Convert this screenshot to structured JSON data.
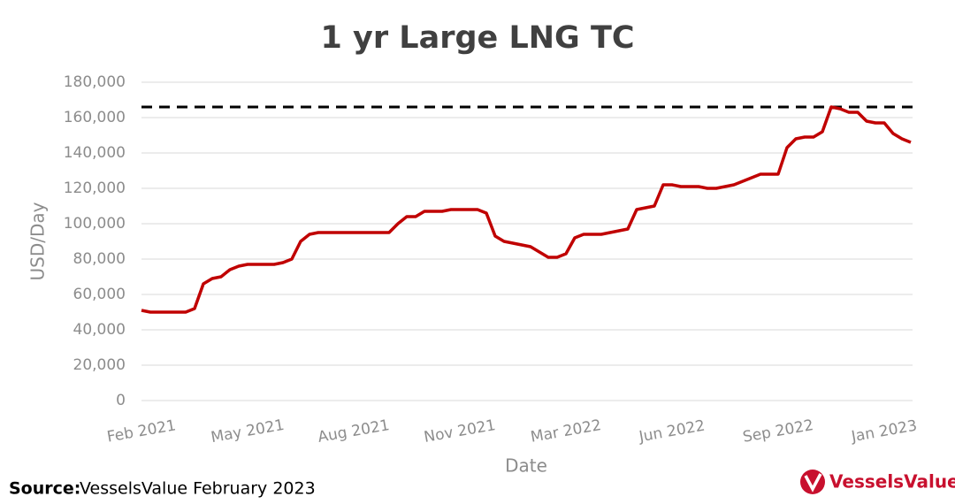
{
  "chart_data": {
    "type": "line",
    "title": "1 yr Large LNG TC",
    "y_label": "USD/Day",
    "x_label": "Date",
    "source_label": "Source:",
    "source": "VesselsValue February 2023",
    "logo": "VesselsValue",
    "categories": [
      "Feb 2021",
      null,
      null,
      null,
      null,
      null,
      null,
      null,
      null,
      null,
      null,
      null,
      "May 2021",
      null,
      null,
      null,
      null,
      null,
      null,
      null,
      null,
      null,
      null,
      null,
      "Aug 2021",
      null,
      null,
      null,
      null,
      null,
      null,
      null,
      null,
      null,
      null,
      null,
      "Nov 2021",
      null,
      null,
      null,
      null,
      null,
      null,
      null,
      null,
      null,
      null,
      null,
      "Mar 2022",
      null,
      null,
      null,
      null,
      null,
      null,
      null,
      null,
      null,
      null,
      null,
      "Jun 2022",
      null,
      null,
      null,
      null,
      null,
      null,
      null,
      null,
      null,
      null,
      null,
      "Sep 2022",
      null,
      null,
      null,
      null,
      null,
      null,
      null,
      null,
      null,
      null,
      null,
      "Jan 2023",
      null,
      null,
      null
    ],
    "values": [
      51000,
      50000,
      50000,
      50000,
      50000,
      50000,
      52000,
      66000,
      69000,
      70000,
      74000,
      76000,
      77000,
      77000,
      77000,
      77000,
      78000,
      80000,
      90000,
      94000,
      95000,
      95000,
      95000,
      95000,
      95000,
      95000,
      95000,
      95000,
      95000,
      100000,
      104000,
      104000,
      107000,
      107000,
      107000,
      108000,
      108000,
      108000,
      108000,
      106000,
      93000,
      90000,
      89000,
      88000,
      87000,
      84000,
      81000,
      81000,
      83000,
      92000,
      94000,
      94000,
      94000,
      95000,
      96000,
      97000,
      108000,
      109000,
      110000,
      122000,
      122000,
      121000,
      121000,
      121000,
      120000,
      120000,
      121000,
      122000,
      124000,
      126000,
      128000,
      128000,
      128000,
      143000,
      148000,
      149000,
      149000,
      152000,
      166000,
      165000,
      163000,
      163000,
      158000,
      157000,
      157000,
      151000,
      148000,
      146000
    ],
    "color": "#c00000",
    "reference_line": {
      "value": 166000,
      "color": "#000000",
      "dashed": true
    },
    "ylim": [
      0,
      180000
    ],
    "yticks": [
      0,
      {
        "value": 20000,
        "label": "20,000"
      },
      {
        "value": 40000,
        "label": "40,000"
      },
      {
        "value": 60000,
        "label": "60,000"
      },
      {
        "value": 80000,
        "label": "80,000"
      },
      {
        "value": 100000,
        "label": "100,000"
      },
      {
        "value": 120000,
        "label": "120,000"
      },
      {
        "value": 140000,
        "label": "140,000"
      },
      {
        "value": 160000,
        "label": "160,000"
      },
      {
        "value": 180000,
        "label": "180,000"
      }
    ],
    "grid": true
  }
}
